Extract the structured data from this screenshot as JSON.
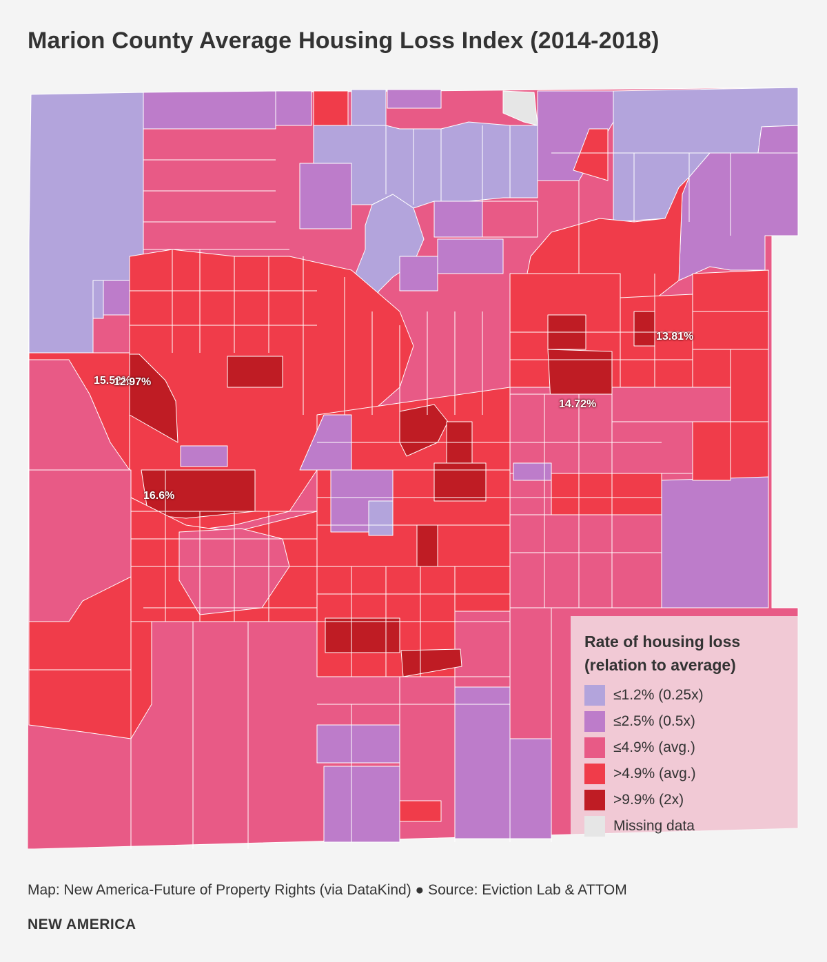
{
  "title": "Marion County Average Housing Loss Index (2014-2018)",
  "colors": {
    "c1": "#b3a4dc",
    "c2": "#bd7cca",
    "c3": "#e85a86",
    "c4": "#f03c4a",
    "c5": "#bf1c24",
    "missing": "#e6e6e6",
    "boundary": "#ffffff"
  },
  "legend": {
    "title": "Rate of housing loss (relation to average)",
    "items": [
      {
        "label": "≤1.2% (0.25x)",
        "color_key": "c1"
      },
      {
        "label": "≤2.5% (0.5x)",
        "color_key": "c2"
      },
      {
        "label": "≤4.9% (avg.)",
        "color_key": "c3"
      },
      {
        "label": ">4.9% (avg.)",
        "color_key": "c4"
      },
      {
        "label": ">9.9% (2x)",
        "color_key": "c5"
      },
      {
        "label": "Missing data",
        "color_key": "missing"
      }
    ]
  },
  "map_labels": [
    {
      "id": "l1",
      "text": "15.52%"
    },
    {
      "id": "l2",
      "text": "12.97%"
    },
    {
      "id": "l3",
      "text": "13.81%"
    },
    {
      "id": "l4",
      "text": "14.72%"
    },
    {
      "id": "l5",
      "text": "16.6%"
    }
  ],
  "footer": {
    "source": "Map: New America-Future of Property Rights (via DataKind) ● Source: Eviction Lab & ATTOM",
    "brand": "NEW AMERICA"
  }
}
